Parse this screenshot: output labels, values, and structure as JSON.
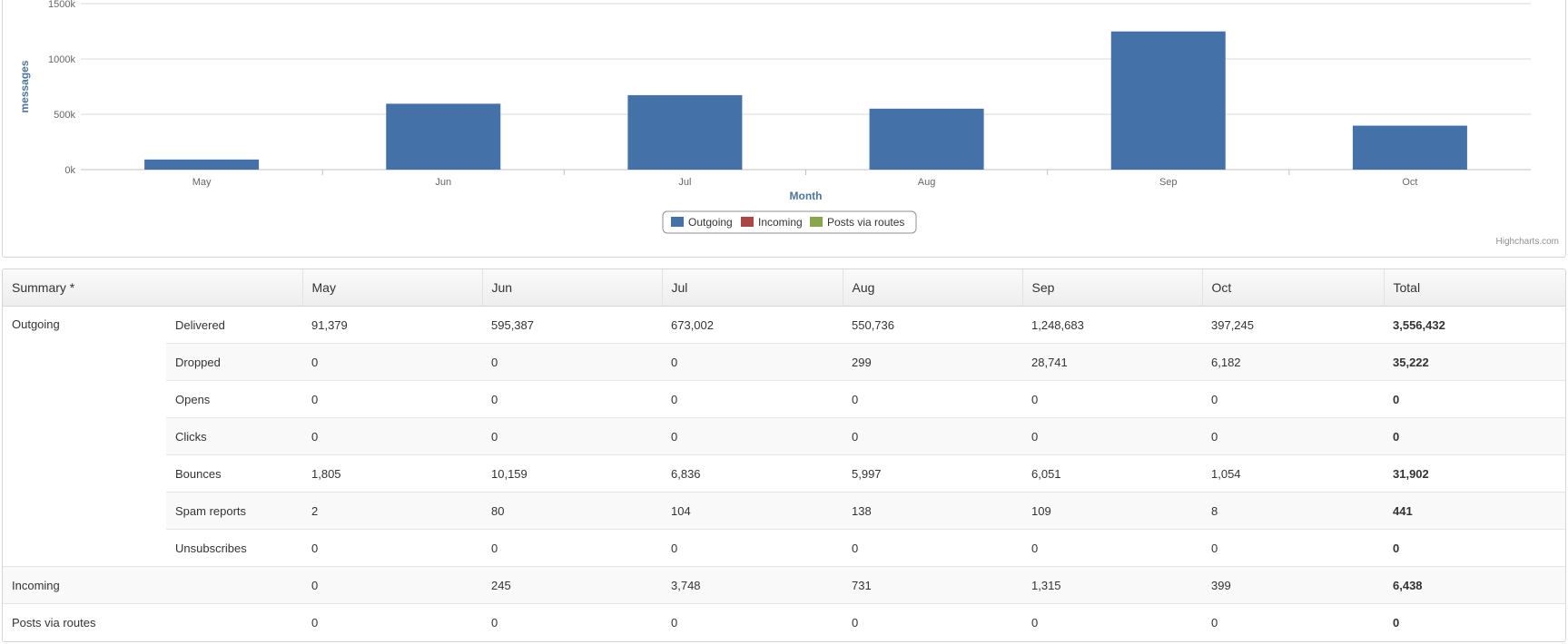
{
  "colors": {
    "outgoing": "#4472a8",
    "incoming": "#aa4643",
    "posts_via_routes": "#89a54e",
    "axis_title": "#4d759e"
  },
  "chart_data": {
    "type": "bar",
    "categories": [
      "May",
      "Jun",
      "Jul",
      "Aug",
      "Sep",
      "Oct"
    ],
    "series": [
      {
        "name": "Outgoing",
        "values": [
          91379,
          595387,
          673002,
          550736,
          1248683,
          397245
        ]
      },
      {
        "name": "Incoming",
        "values": [
          0,
          245,
          3748,
          731,
          1315,
          399
        ]
      },
      {
        "name": "Posts via routes",
        "values": [
          0,
          0,
          0,
          0,
          0,
          0
        ]
      }
    ],
    "xlabel": "Month",
    "ylabel": "messages",
    "ylim": [
      0,
      1500000
    ],
    "ytick_labels": [
      "0k",
      "500k",
      "1000k",
      "1500k"
    ],
    "grid": true,
    "legend_position": "bottom-center",
    "credit": "Highcharts.com"
  },
  "table": {
    "headers": [
      "Summary *",
      "May",
      "Jun",
      "Jul",
      "Aug",
      "Sep",
      "Oct",
      "Total"
    ],
    "outgoing_label": "Outgoing",
    "outgoing_rows": [
      {
        "label": "Delivered",
        "values": [
          "91,379",
          "595,387",
          "673,002",
          "550,736",
          "1,248,683",
          "397,245"
        ],
        "total": "3,556,432"
      },
      {
        "label": "Dropped",
        "values": [
          "0",
          "0",
          "0",
          "299",
          "28,741",
          "6,182"
        ],
        "total": "35,222"
      },
      {
        "label": "Opens",
        "values": [
          "0",
          "0",
          "0",
          "0",
          "0",
          "0"
        ],
        "total": "0"
      },
      {
        "label": "Clicks",
        "values": [
          "0",
          "0",
          "0",
          "0",
          "0",
          "0"
        ],
        "total": "0"
      },
      {
        "label": "Bounces",
        "values": [
          "1,805",
          "10,159",
          "6,836",
          "5,997",
          "6,051",
          "1,054"
        ],
        "total": "31,902"
      },
      {
        "label": "Spam reports",
        "values": [
          "2",
          "80",
          "104",
          "138",
          "109",
          "8"
        ],
        "total": "441"
      },
      {
        "label": "Unsubscribes",
        "values": [
          "0",
          "0",
          "0",
          "0",
          "0",
          "0"
        ],
        "total": "0"
      }
    ],
    "other_rows": [
      {
        "label": "Incoming",
        "values": [
          "0",
          "245",
          "3,748",
          "731",
          "1,315",
          "399"
        ],
        "total": "6,438"
      },
      {
        "label": "Posts via routes",
        "values": [
          "0",
          "0",
          "0",
          "0",
          "0",
          "0"
        ],
        "total": "0"
      }
    ]
  }
}
